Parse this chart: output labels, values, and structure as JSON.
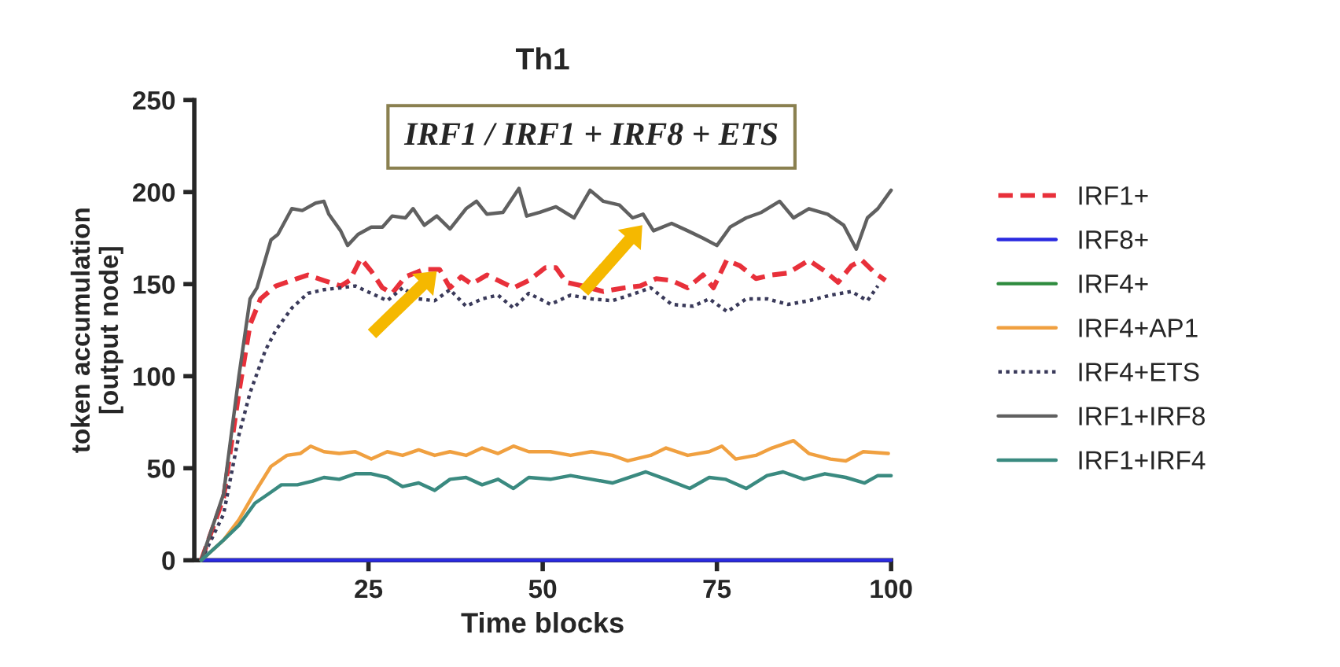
{
  "chart_data": {
    "type": "line",
    "title": "Th1",
    "xlabel": "Time blocks",
    "ylabel": "token accumulation\n[output node]",
    "annotations": [
      "IRF1 / IRF1 + IRF8 + ETS"
    ],
    "xlim": [
      0,
      100
    ],
    "xticks": [
      25,
      50,
      75,
      100
    ],
    "ylim": [
      0,
      250
    ],
    "yticks": [
      0,
      50,
      100,
      150,
      200,
      250
    ],
    "grid": false,
    "legend": "right",
    "series": [
      {
        "name": "IRF1+",
        "color": "#e8303a",
        "line_style": "dashed",
        "x": [
          1,
          4.2,
          6.4,
          8,
          9.5,
          11.7,
          14,
          16.3,
          18.6,
          21,
          22.3,
          23.9,
          25.4,
          27,
          28.4,
          30.3,
          33,
          35.2,
          36.7,
          38.3,
          39.8,
          42,
          43.6,
          45.8,
          48,
          50.4,
          51.9,
          53.4,
          55.7,
          58.7,
          61.7,
          64,
          66.3,
          68.5,
          70.8,
          73,
          74.5,
          76.4,
          78.3,
          80.6,
          82.9,
          85.2,
          88.2,
          90.5,
          92.4,
          94.3,
          95.8,
          97.7,
          99.2
        ],
        "values": [
          0,
          34,
          91,
          128,
          142,
          149,
          152,
          155,
          152,
          149,
          152,
          164,
          157,
          148,
          145,
          154,
          158,
          158,
          148,
          154,
          150,
          155,
          152,
          148,
          152,
          159,
          159,
          151,
          149,
          146,
          148,
          149,
          153,
          152,
          148,
          155,
          148,
          163,
          160,
          153,
          155,
          156,
          163,
          157,
          151,
          160,
          163,
          156,
          152
        ]
      },
      {
        "name": "IRF8+",
        "color": "#2a2ae0",
        "line_style": "solid",
        "x": [
          1,
          100
        ],
        "values": [
          0,
          0
        ]
      },
      {
        "name": "IRF4+",
        "color": "#2e8b3e",
        "line_style": "solid"
      },
      {
        "name": "IRF4+AP1",
        "color": "#f0a040",
        "line_style": "solid",
        "x": [
          1,
          4.2,
          6.4,
          8.7,
          11,
          13.3,
          15.2,
          16.7,
          18.6,
          20.8,
          23.1,
          25.4,
          27.7,
          29.9,
          32.2,
          34.5,
          36.7,
          39,
          41.3,
          43.6,
          45.8,
          48,
          51.1,
          54,
          57,
          60,
          62.2,
          65.5,
          67.7,
          70.8,
          73.9,
          75.7,
          77.7,
          80.6,
          82.9,
          86,
          88.2,
          91.3,
          93.5,
          96,
          99.6
        ],
        "values": [
          0,
          11,
          22,
          37,
          51,
          57,
          58,
          62,
          59,
          58,
          59,
          55,
          59,
          57,
          60,
          57,
          59,
          57,
          61,
          58,
          62,
          59,
          59,
          57,
          59,
          57,
          54,
          57,
          61,
          57,
          59,
          62,
          55,
          57,
          61,
          65,
          58,
          55,
          54,
          59,
          58
        ]
      },
      {
        "name": "IRF4+ETS",
        "color": "#3a3a5a",
        "line_style": "dotted",
        "x": [
          1,
          4.2,
          6.4,
          8,
          10.2,
          11.7,
          14,
          16.3,
          18.6,
          21,
          23.1,
          25.4,
          27.7,
          29.9,
          32.2,
          34.5,
          36.7,
          39,
          41.3,
          43.6,
          45.8,
          48,
          51.1,
          54,
          57,
          60,
          63.3,
          65.5,
          68.5,
          71.6,
          73.9,
          76.5,
          79.2,
          82.2,
          85.2,
          88.2,
          91.3,
          94.3,
          96.6,
          98.1
        ],
        "values": [
          0,
          25,
          68,
          91,
          114,
          125,
          137,
          145,
          147,
          148,
          149,
          145,
          141,
          148,
          142,
          141,
          147,
          138,
          142,
          144,
          137,
          145,
          139,
          144,
          142,
          141,
          145,
          148,
          139,
          138,
          142,
          135,
          142,
          142,
          139,
          141,
          144,
          146,
          141,
          149
        ]
      },
      {
        "name": "IRF1+IRF8",
        "color": "#606060",
        "line_style": "solid",
        "x": [
          1,
          4.2,
          6.4,
          8,
          9,
          11,
          12,
          14,
          15.5,
          17.4,
          18.6,
          19.3,
          21,
          22,
          23.5,
          25.4,
          27,
          28.4,
          30.3,
          31.4,
          33,
          34.8,
          36.7,
          39,
          40.5,
          42,
          44.3,
          46.6,
          47.7,
          49.6,
          51.9,
          54.5,
          56.8,
          58.7,
          61,
          62.9,
          64.4,
          65.9,
          68.5,
          70.8,
          73,
          75,
          76.9,
          79.2,
          81.4,
          84,
          86,
          88.2,
          90.9,
          93.2,
          95,
          96.6,
          98.1,
          100
        ],
        "values": [
          0,
          36,
          100,
          142,
          148,
          174,
          177,
          191,
          190,
          194,
          195,
          188,
          179,
          171,
          177,
          181,
          181,
          187,
          186,
          191,
          182,
          187,
          180,
          191,
          195,
          188,
          189,
          202,
          187,
          189,
          192,
          186,
          201,
          195,
          193,
          186,
          188,
          179,
          183,
          179,
          175,
          171,
          181,
          186,
          189,
          195,
          186,
          191,
          188,
          182,
          169,
          186,
          191,
          201
        ]
      },
      {
        "name": "IRF1+IRF4",
        "color": "#3a8a80",
        "line_style": "solid",
        "x": [
          1,
          4.2,
          6.4,
          8.7,
          11,
          12.5,
          14.8,
          17,
          18.6,
          20.8,
          23.1,
          25.4,
          27.7,
          29.9,
          32.2,
          34.5,
          36.7,
          39,
          41.3,
          43.6,
          45.8,
          48,
          51.1,
          54,
          57,
          60,
          64.8,
          67.7,
          71.1,
          73.9,
          76.2,
          79.2,
          82.2,
          84.5,
          87.5,
          90.5,
          93.5,
          96.2,
          98.1,
          100
        ],
        "values": [
          0,
          11,
          19,
          31,
          37,
          41,
          41,
          43,
          45,
          44,
          47,
          47,
          45,
          40,
          42,
          38,
          44,
          45,
          41,
          44,
          39,
          45,
          44,
          46,
          44,
          42,
          48,
          44,
          39,
          45,
          44,
          39,
          46,
          48,
          44,
          47,
          45,
          42,
          46,
          46
        ]
      }
    ]
  }
}
